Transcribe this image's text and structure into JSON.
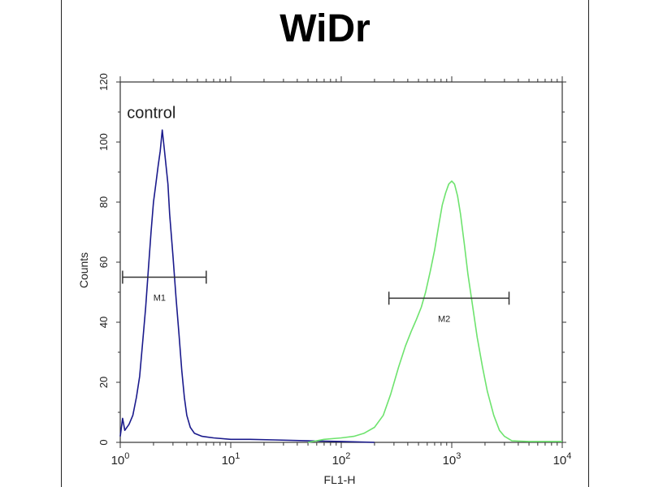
{
  "chart_data": {
    "type": "line",
    "title": "WiDr",
    "xlabel": "FL1-H",
    "ylabel": "Counts",
    "x_scale": "log",
    "xlim": [
      1,
      10000
    ],
    "ylim": [
      0,
      120
    ],
    "y_ticks": [
      0,
      20,
      40,
      60,
      80,
      100,
      120
    ],
    "x_ticks": [
      {
        "base": "10",
        "exp": "0",
        "value": 1
      },
      {
        "base": "10",
        "exp": "1",
        "value": 10
      },
      {
        "base": "10",
        "exp": "2",
        "value": 100
      },
      {
        "base": "10",
        "exp": "3",
        "value": 1000
      },
      {
        "base": "10",
        "exp": "4",
        "value": 10000
      }
    ],
    "grid": false,
    "series": [
      {
        "name": "control",
        "color": "#1a1a8c",
        "points": [
          [
            1.0,
            2
          ],
          [
            1.05,
            8
          ],
          [
            1.1,
            4
          ],
          [
            1.2,
            6
          ],
          [
            1.3,
            9
          ],
          [
            1.4,
            15
          ],
          [
            1.5,
            22
          ],
          [
            1.6,
            34
          ],
          [
            1.7,
            45
          ],
          [
            1.8,
            58
          ],
          [
            1.9,
            70
          ],
          [
            2.0,
            80
          ],
          [
            2.1,
            86
          ],
          [
            2.2,
            92
          ],
          [
            2.3,
            97
          ],
          [
            2.4,
            104
          ],
          [
            2.5,
            98
          ],
          [
            2.6,
            92
          ],
          [
            2.7,
            86
          ],
          [
            2.8,
            76
          ],
          [
            3.0,
            62
          ],
          [
            3.2,
            48
          ],
          [
            3.4,
            36
          ],
          [
            3.6,
            24
          ],
          [
            3.8,
            15
          ],
          [
            4.0,
            9
          ],
          [
            4.3,
            5
          ],
          [
            4.7,
            3
          ],
          [
            5.5,
            2
          ],
          [
            7,
            1.5
          ],
          [
            10,
            1
          ],
          [
            15,
            1
          ],
          [
            25,
            0.8
          ],
          [
            50,
            0.5
          ],
          [
            100,
            0.3
          ],
          [
            200,
            0
          ]
        ]
      },
      {
        "name": "",
        "color": "#6ee36e",
        "points": [
          [
            50,
            0
          ],
          [
            70,
            1
          ],
          [
            100,
            1.5
          ],
          [
            130,
            2
          ],
          [
            160,
            3
          ],
          [
            200,
            5
          ],
          [
            240,
            9
          ],
          [
            280,
            16
          ],
          [
            330,
            25
          ],
          [
            380,
            32
          ],
          [
            430,
            37
          ],
          [
            480,
            41
          ],
          [
            530,
            45
          ],
          [
            580,
            50
          ],
          [
            640,
            57
          ],
          [
            700,
            64
          ],
          [
            760,
            72
          ],
          [
            820,
            79
          ],
          [
            880,
            83
          ],
          [
            940,
            86
          ],
          [
            1000,
            87
          ],
          [
            1060,
            86
          ],
          [
            1130,
            82
          ],
          [
            1200,
            76
          ],
          [
            1300,
            66
          ],
          [
            1400,
            56
          ],
          [
            1550,
            45
          ],
          [
            1700,
            35
          ],
          [
            1900,
            25
          ],
          [
            2100,
            17
          ],
          [
            2400,
            9
          ],
          [
            2700,
            4
          ],
          [
            3000,
            2
          ],
          [
            3500,
            0.5
          ],
          [
            5000,
            0.3
          ],
          [
            10000,
            0.3
          ]
        ]
      }
    ],
    "markers": [
      {
        "label": "M1",
        "x_start": 1.05,
        "x_end": 6.0,
        "y": 55
      },
      {
        "label": "M2",
        "x_start": 270,
        "x_end": 3300,
        "y": 48
      }
    ],
    "annotations": [
      {
        "text": "control",
        "x": 1.15,
        "y": 108
      }
    ]
  }
}
